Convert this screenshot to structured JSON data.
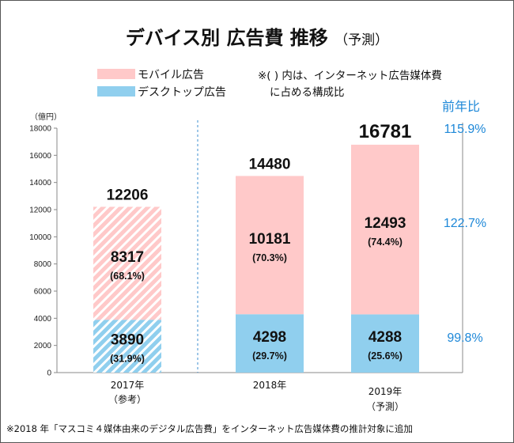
{
  "title": {
    "main": "デバイス別 広告費 推移",
    "sub": "（予測）"
  },
  "legend": [
    {
      "label": "モバイル広告",
      "color": "#ffc9c9"
    },
    {
      "label": "デスクトップ広告",
      "color": "#90cfee"
    }
  ],
  "note": [
    "※( ) 内は、インターネット広告媒体費",
    "に占める構成比"
  ],
  "yoy_header": "前年比",
  "yoy": {
    "total": "115.9%",
    "mobile": "122.7%",
    "desktop": "99.8%"
  },
  "footnote": "※2018 年「マスコミ４媒体由来のデジタル広告費」をインターネット広告媒体費の推計対象に追加",
  "chart_data": {
    "type": "bar",
    "stacked": true,
    "ylabel": "（億円）",
    "ylim": [
      0,
      18000
    ],
    "yticks": [
      0,
      2000,
      4000,
      6000,
      8000,
      10000,
      12000,
      14000,
      16000,
      18000
    ],
    "categories": [
      {
        "label": "2017年",
        "sub": "（参考）",
        "hatched": true
      },
      {
        "label": "2018年",
        "sub": ""
      },
      {
        "label": "2019年",
        "sub": "（予測）"
      }
    ],
    "series": [
      {
        "name": "デスクトップ広告",
        "color": "#90cfee",
        "values": [
          3890,
          4298,
          4288
        ],
        "shares": [
          "(31.9%)",
          "(29.7%)",
          "(25.6%)"
        ]
      },
      {
        "name": "モバイル広告",
        "color": "#ffc9c9",
        "values": [
          8317,
          10181,
          12493
        ],
        "shares": [
          "(68.1%)",
          "(70.3%)",
          "(74.4%)"
        ]
      }
    ],
    "totals": [
      12206,
      14480,
      16781
    ]
  }
}
